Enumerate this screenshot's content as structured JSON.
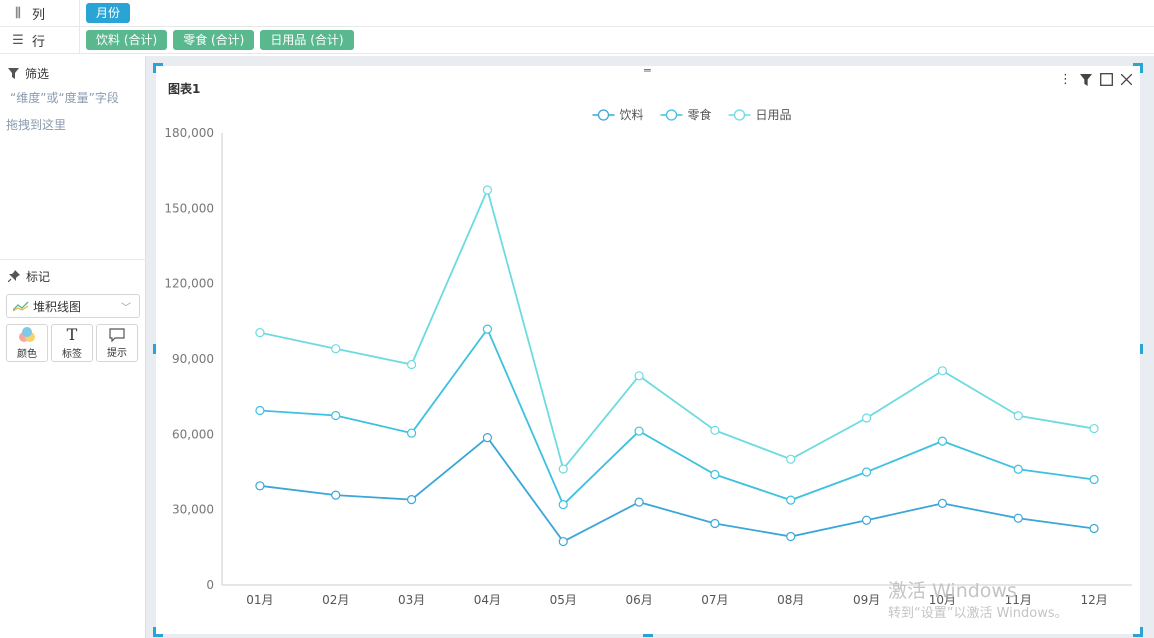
{
  "shelves": {
    "columns": {
      "label": "列",
      "icon": "columns-icon",
      "pills": [
        "月份"
      ]
    },
    "rows": {
      "label": "行",
      "icon": "list-icon",
      "pills": [
        "饮料 (合计)",
        "零食 (合计)",
        "日用品 (合计)"
      ]
    }
  },
  "filter": {
    "title": "筛选",
    "hint_line1": "“维度”或“度量”字段",
    "hint_line2": "拖拽到这里"
  },
  "marks": {
    "title": "标记",
    "chart_type": "堆积线图",
    "buttons": [
      {
        "label": "颜色",
        "icon": "color-icon"
      },
      {
        "label": "标签",
        "icon": "text-icon"
      },
      {
        "label": "提示",
        "icon": "tooltip-icon"
      }
    ]
  },
  "panel": {
    "title": "图表1"
  },
  "watermark": {
    "line1": "激活 Windows",
    "line2": "转到“设置”以激活 Windows。"
  },
  "colors": {
    "series1": "#3ba6d8",
    "series2": "#3ec1e0",
    "series3": "#6cdbe0",
    "accent": "#2aa4d5",
    "pill_green": "#5ab88f"
  },
  "chart_data": {
    "type": "line",
    "stacked": true,
    "categories": [
      "01月",
      "02月",
      "03月",
      "04月",
      "05月",
      "06月",
      "07月",
      "08月",
      "09月",
      "10月",
      "11月",
      "12月"
    ],
    "series": [
      {
        "name": "饮料",
        "values": [
          39500,
          35800,
          34000,
          58700,
          17300,
          33000,
          24500,
          19300,
          25800,
          32500,
          26600,
          22500
        ]
      },
      {
        "name": "零食",
        "values": [
          30000,
          31700,
          26500,
          43200,
          14700,
          28300,
          19500,
          14500,
          19200,
          24800,
          19500,
          19500
        ]
      },
      {
        "name": "日用品",
        "values": [
          31000,
          26600,
          27300,
          55400,
          14200,
          22000,
          17600,
          16300,
          21500,
          28000,
          21300,
          20300
        ]
      }
    ],
    "y_ticks": [
      "0",
      "30,000",
      "60,000",
      "90,000",
      "120,000",
      "150,000",
      "180,000"
    ],
    "ylim": [
      0,
      180000
    ],
    "legend": "top-center",
    "grid": false
  }
}
